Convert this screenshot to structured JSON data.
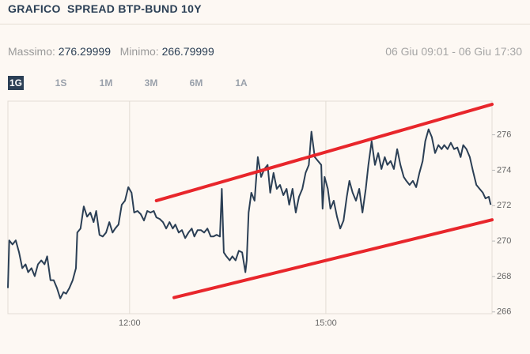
{
  "header": {
    "title": "GRAFICO  SPREAD BTP-BUND 10Y"
  },
  "stats": {
    "max_label": "Massimo:",
    "max_value": 276.29999,
    "min_label": "Minimo:",
    "min_value": 266.79999,
    "range": "06 Giu 09:01 - 06 Giu 17:30"
  },
  "tabs": {
    "items": [
      "1G",
      "1S",
      "1M",
      "3M",
      "6M",
      "1A"
    ],
    "selected": 0
  },
  "chart_data": {
    "type": "line",
    "x": [
      10.14,
      10.16,
      10.21,
      10.26,
      10.31,
      10.36,
      10.41,
      10.45,
      10.5,
      10.55,
      10.6,
      10.65,
      10.7,
      10.74,
      10.79,
      10.84,
      10.89,
      10.94,
      10.99,
      11.03,
      11.08,
      11.13,
      11.18,
      11.2,
      11.25,
      11.3,
      11.35,
      11.4,
      11.45,
      11.49,
      11.54,
      11.59,
      11.64,
      11.69,
      11.74,
      11.78,
      11.83,
      11.88,
      11.93,
      11.98,
      12.03,
      12.07,
      12.12,
      12.17,
      12.22,
      12.27,
      12.32,
      12.37,
      12.41,
      12.46,
      12.51,
      12.56,
      12.61,
      12.66,
      12.7,
      12.75,
      12.8,
      12.85,
      12.9,
      12.95,
      12.99,
      13.04,
      13.09,
      13.14,
      13.19,
      13.24,
      13.28,
      13.33,
      13.38,
      13.41,
      13.44,
      13.48,
      13.53,
      13.57,
      13.62,
      13.67,
      13.72,
      13.77,
      13.79,
      13.82,
      13.86,
      13.91,
      13.96,
      14.01,
      14.06,
      14.11,
      14.15,
      14.2,
      14.25,
      14.3,
      14.35,
      14.4,
      14.44,
      14.49,
      14.54,
      14.59,
      14.64,
      14.69,
      14.74,
      14.78,
      14.83,
      14.88,
      14.93,
      14.95,
      14.98,
      15.03,
      15.07,
      15.12,
      15.17,
      15.22,
      15.27,
      15.32,
      15.36,
      15.41,
      15.46,
      15.51,
      15.56,
      15.61,
      15.65,
      15.7,
      15.75,
      15.8,
      15.85,
      15.9,
      15.94,
      15.99,
      16.04,
      16.09,
      16.14,
      16.19,
      16.23,
      16.28,
      16.33,
      16.38,
      16.43,
      16.48,
      16.52,
      16.57,
      16.62,
      16.67,
      16.72,
      16.77,
      16.81,
      16.86,
      16.91,
      16.96,
      17.01,
      17.06,
      17.1,
      17.15,
      17.2,
      17.25,
      17.3,
      17.35,
      17.4,
      17.44,
      17.49,
      17.52
    ],
    "series": [
      {
        "color": "#2b3f55",
        "values": [
          267.35,
          270.04,
          269.81,
          270.04,
          269.36,
          268.47,
          268.69,
          268.24,
          268.47,
          268.02,
          268.69,
          268.91,
          268.69,
          269.14,
          267.79,
          267.79,
          267.35,
          266.76,
          267.12,
          267.03,
          267.35,
          267.79,
          268.47,
          270.48,
          270.71,
          271.96,
          271.38,
          271.61,
          271.07,
          271.7,
          270.35,
          270.26,
          270.48,
          271.07,
          270.48,
          270.71,
          270.93,
          272.05,
          272.28,
          273.04,
          272.73,
          271.61,
          271.7,
          271.52,
          271.16,
          271.7,
          271.61,
          271.7,
          271.34,
          271.25,
          271.07,
          270.71,
          271.07,
          270.71,
          270.93,
          270.48,
          270.62,
          270.17,
          270.48,
          270.71,
          270.26,
          270.62,
          270.62,
          270.48,
          270.71,
          270.26,
          270.26,
          270.35,
          270.26,
          272.95,
          269.36,
          269.14,
          268.91,
          269.14,
          268.91,
          269.45,
          269.36,
          268.24,
          268.91,
          271.61,
          272.73,
          272.28,
          274.74,
          273.62,
          274.07,
          274.3,
          272.73,
          273.85,
          272.95,
          273.17,
          272.59,
          272.95,
          272.05,
          272.95,
          271.61,
          272.5,
          272.95,
          273.85,
          274.3,
          276.18,
          274.74,
          274.52,
          274.3,
          271.83,
          273.62,
          272.95,
          271.83,
          272.28,
          271.38,
          270.71,
          271.16,
          272.5,
          273.4,
          272.73,
          272.28,
          272.95,
          271.61,
          272.95,
          274.3,
          275.64,
          274.3,
          274.97,
          274.07,
          274.74,
          274.3,
          274.52,
          274.07,
          275.19,
          274.3,
          273.62,
          273.4,
          273.17,
          273.4,
          273.04,
          273.85,
          274.52,
          275.64,
          276.31,
          275.87,
          274.97,
          275.42,
          275.19,
          275.42,
          275.19,
          275.55,
          275.19,
          275.28,
          274.74,
          275.42,
          275.19,
          274.74,
          273.94,
          273.17,
          272.95,
          272.73,
          272.41,
          272.5,
          272.05
        ]
      }
    ],
    "xlim": [
      10.14,
      17.54
    ],
    "xticks": [
      {
        "value": 12,
        "label": "12:00"
      },
      {
        "value": 15,
        "label": "15:00"
      }
    ],
    "ylim": [
      265.9,
      277.9
    ],
    "yticks": [
      266,
      268,
      270,
      272,
      274,
      276
    ],
    "grid": true,
    "trend_lines": [
      {
        "color": "#e8262b",
        "x": [
          12.41,
          17.54
        ],
        "y": [
          272.28,
          277.72
        ]
      },
      {
        "color": "#e8262b",
        "x": [
          12.68,
          17.54
        ],
        "y": [
          266.81,
          271.2
        ]
      }
    ]
  }
}
